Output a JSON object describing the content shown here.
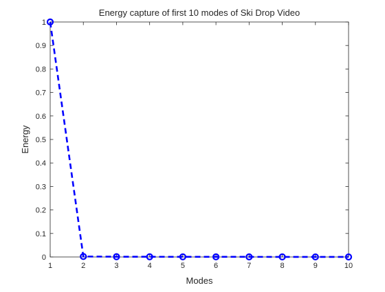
{
  "chart_data": {
    "type": "line",
    "title": "Energy capture of first 10 modes of Ski Drop Video",
    "xlabel": "Modes",
    "ylabel": "Energy",
    "xlim": [
      1,
      10
    ],
    "ylim": [
      0,
      1
    ],
    "x": [
      1,
      2,
      3,
      4,
      5,
      6,
      7,
      8,
      9,
      10
    ],
    "xticks": [
      "1",
      "2",
      "3",
      "4",
      "5",
      "6",
      "7",
      "8",
      "9",
      "10"
    ],
    "yticks": [
      "0",
      "0.1",
      "0.2",
      "0.3",
      "0.4",
      "0.5",
      "0.6",
      "0.7",
      "0.8",
      "0.9",
      "1"
    ],
    "series": [
      {
        "values": [
          1.0,
          0.002,
          0.001,
          0.0008,
          0.0006,
          0.0005,
          0.0004,
          0.0003,
          0.0002,
          0.0001
        ],
        "color": "#0000ff",
        "line_style": "dashed",
        "marker": "circle"
      }
    ],
    "grid": false,
    "box": true
  }
}
